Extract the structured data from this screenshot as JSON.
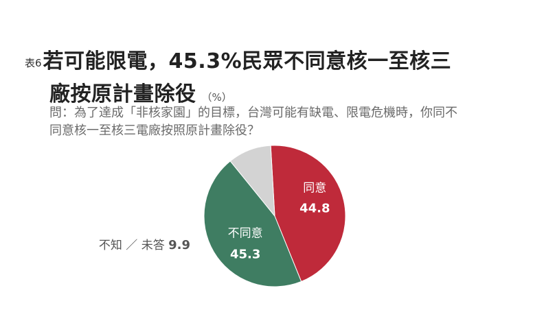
{
  "header": {
    "table_no": "表6",
    "title_line1": "若可能限電，45.3%民眾不同意核一至核三",
    "title_line2": "廠按原計畫除役",
    "unit": "（%）"
  },
  "question": {
    "line1": "問：為了達成「非核家園」的目標，台灣可能有缺電、限電危機時，你同不",
    "line2": "同意核一至核三電廠按照原計畫除役？"
  },
  "chart_data": {
    "type": "pie",
    "unit": "%",
    "slices": [
      {
        "label": "同意",
        "value": 44.8,
        "color": "#bf2a3a"
      },
      {
        "label": "不同意",
        "value": 45.3,
        "color": "#3f7d62"
      },
      {
        "label": "不知／未答",
        "value": 9.9,
        "color": "#d3d3d3"
      }
    ],
    "outside_label": {
      "label": "不知 ／ 未答",
      "value": "9.9"
    }
  }
}
